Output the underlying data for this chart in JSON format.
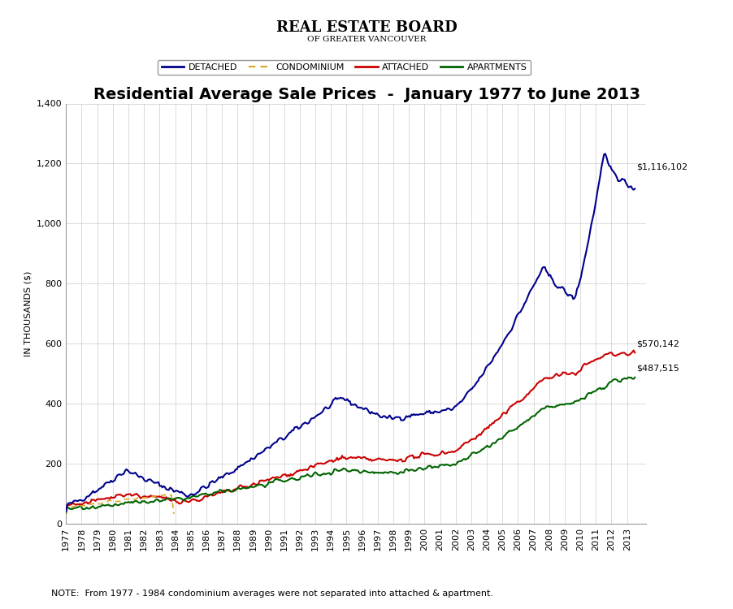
{
  "title": "Residential Average Sale Prices  -  January 1977 to June 2013",
  "ylabel": "IN THOUSANDS ($)",
  "ylim": [
    0,
    1400
  ],
  "yticks": [
    0,
    200,
    400,
    600,
    800,
    1000,
    1200,
    1400
  ],
  "note": "NOTE:  From 1977 - 1984 condominium averages were not separated into attached & apartment.",
  "annotations": {
    "detached": "$1,116,102",
    "attached": "$570,142",
    "apartments": "$487,515"
  },
  "colors": {
    "detached": "#00008B",
    "condominium": "#DAA520",
    "attached": "#CC0000",
    "apartments": "#006400",
    "background": "#FFFFFF",
    "grid": "#CCCCCC"
  },
  "legend_labels": [
    "DETACHED",
    "CONDOMINIUM",
    "ATTACHED",
    "APARTMENTS"
  ],
  "rebof_line1": "REAL ESTATE BOARD",
  "rebof_line2": "OF GREATER VANCOUVER"
}
